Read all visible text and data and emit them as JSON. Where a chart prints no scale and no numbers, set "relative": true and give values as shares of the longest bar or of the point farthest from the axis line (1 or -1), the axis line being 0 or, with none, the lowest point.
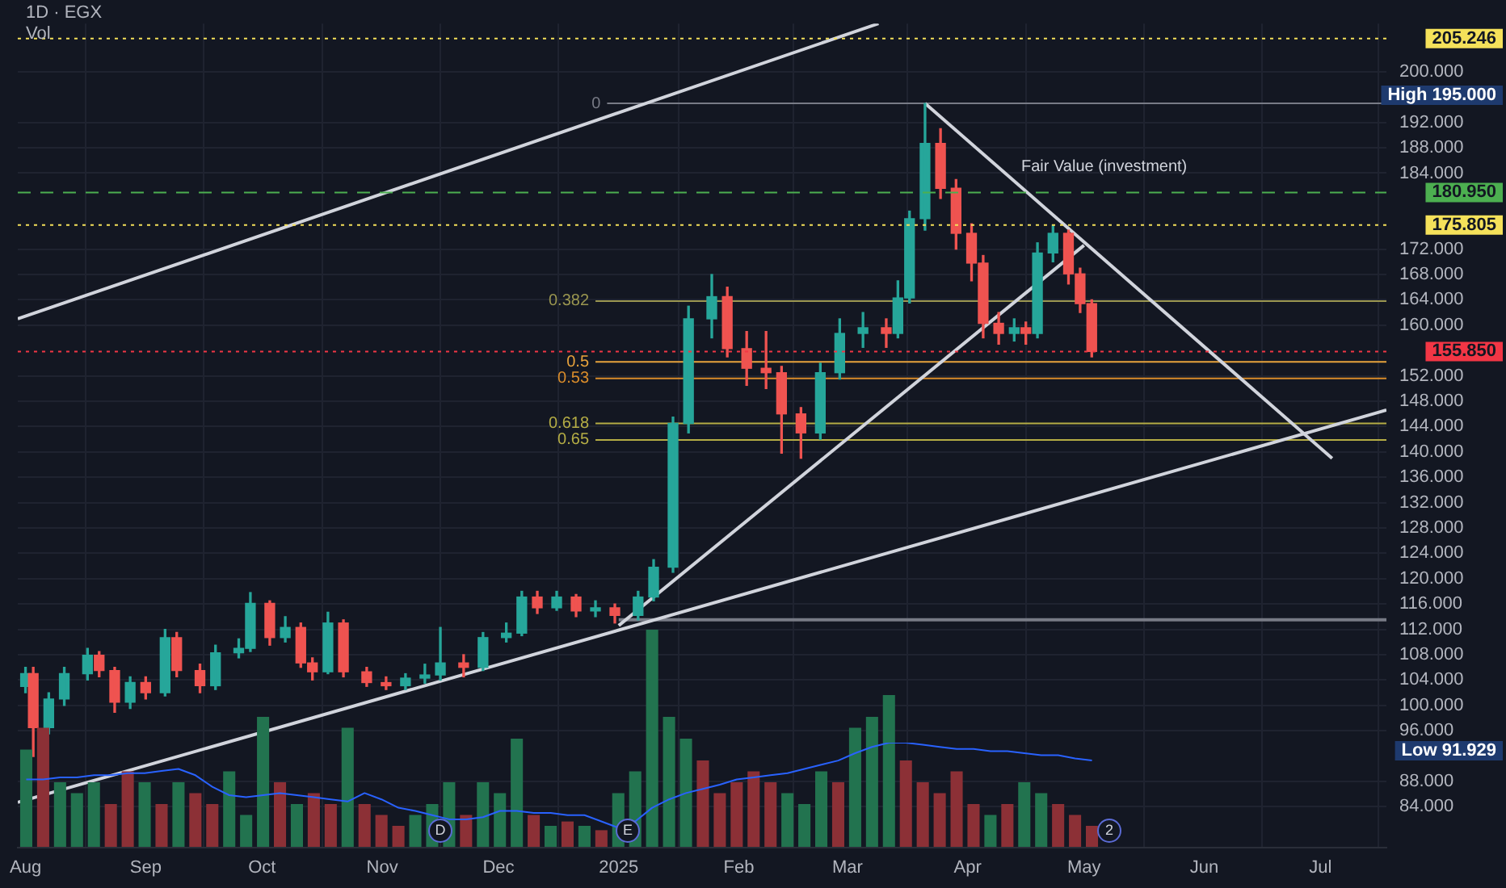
{
  "chart_data": [
    {
      "type": "candlestick",
      "title": "1D · EGX",
      "grid": true,
      "x": [
        "2024-08-01",
        "2024-08-03",
        "2024-08-07",
        "2024-08-11",
        "2024-08-17",
        "2024-08-20",
        "2024-08-24",
        "2024-08-28",
        "2024-09-01",
        "2024-09-06",
        "2024-09-09",
        "2024-09-15",
        "2024-09-19",
        "2024-09-25",
        "2024-09-28",
        "2024-10-03",
        "2024-10-07",
        "2024-10-11",
        "2024-10-14",
        "2024-10-18",
        "2024-10-22",
        "2024-10-28",
        "2024-11-02",
        "2024-11-07",
        "2024-11-12",
        "2024-11-16",
        "2024-11-22",
        "2024-11-27",
        "2024-12-03",
        "2024-12-07",
        "2024-12-11",
        "2024-12-16",
        "2024-12-21",
        "2024-12-26",
        "2024-12-31",
        "2025-01-06",
        "2025-01-10",
        "2025-01-15",
        "2025-01-19",
        "2025-01-25",
        "2025-01-29",
        "2025-02-03",
        "2025-02-08",
        "2025-02-12",
        "2025-02-17",
        "2025-02-22",
        "2025-02-27",
        "2025-03-05",
        "2025-03-11",
        "2025-03-14",
        "2025-03-17",
        "2025-03-21",
        "2025-03-25",
        "2025-03-29",
        "2025-04-02",
        "2025-04-05",
        "2025-04-09",
        "2025-04-13",
        "2025-04-16",
        "2025-04-19",
        "2025-04-23",
        "2025-04-27",
        "2025-04-30",
        "2025-05-03"
      ],
      "ohlc": [
        [
          103,
          106,
          102,
          105
        ],
        [
          105,
          106,
          91.929,
          96.5
        ],
        [
          96.5,
          102,
          95.5,
          101
        ],
        [
          101,
          106,
          100,
          105
        ],
        [
          105,
          109,
          104,
          107.9
        ],
        [
          107.9,
          108.5,
          104.5,
          105.5
        ],
        [
          105.5,
          106,
          98.9,
          100.5
        ],
        [
          100.5,
          104.5,
          99.5,
          103.6
        ],
        [
          103.6,
          104.5,
          101,
          102
        ],
        [
          102,
          112,
          101.5,
          110.7
        ],
        [
          110.7,
          111.5,
          104.5,
          105.5
        ],
        [
          105.5,
          106.5,
          102,
          103.1
        ],
        [
          103.1,
          109.5,
          102.5,
          108.3
        ],
        [
          108.3,
          110.5,
          107.5,
          109
        ],
        [
          109,
          117.8,
          108.5,
          116.1
        ],
        [
          116.1,
          116.5,
          109.5,
          110.7
        ],
        [
          110.7,
          114,
          110,
          112.3
        ],
        [
          112.3,
          113,
          106,
          106.7
        ],
        [
          106.7,
          107.5,
          104,
          105.3
        ],
        [
          105.3,
          114.7,
          105,
          113
        ],
        [
          113,
          113.5,
          104.5,
          105.3
        ],
        [
          105.3,
          106,
          103,
          103.6
        ],
        [
          103.6,
          104.5,
          102.5,
          103.1
        ],
        [
          103.1,
          105,
          102.5,
          104.3
        ],
        [
          104.3,
          106.5,
          103.5,
          104.8
        ],
        [
          104.8,
          112.3,
          104,
          106.7
        ],
        [
          106.7,
          108,
          104.5,
          106
        ],
        [
          106,
          111.5,
          105.5,
          110.7
        ],
        [
          110.7,
          113,
          110,
          111.4
        ],
        [
          111.4,
          118,
          111,
          117.1
        ],
        [
          117.1,
          118,
          114.5,
          115.4
        ],
        [
          115.4,
          118,
          115,
          117.1
        ],
        [
          117.1,
          117.5,
          114,
          114.9
        ],
        [
          114.9,
          116.5,
          114,
          115.4
        ],
        [
          115.4,
          116,
          113,
          114.2
        ],
        [
          114.2,
          118,
          113.5,
          117.1
        ],
        [
          117.1,
          123,
          116.5,
          121.8
        ],
        [
          121.8,
          145.5,
          121,
          144.5
        ],
        [
          144.5,
          163,
          143,
          161
        ],
        [
          161,
          168,
          158,
          164.5
        ],
        [
          164.5,
          166,
          155,
          156.3
        ],
        [
          156.3,
          159,
          150.5,
          153.2
        ],
        [
          153.2,
          159,
          150,
          152.5
        ],
        [
          152.5,
          153.5,
          139.8,
          146
        ],
        [
          146,
          147,
          139,
          143
        ],
        [
          143,
          154,
          142,
          152.5
        ],
        [
          152.5,
          161,
          151.5,
          158.7
        ],
        [
          158.7,
          162,
          156.5,
          159.6
        ],
        [
          159.6,
          161,
          156.5,
          158.7
        ],
        [
          158.7,
          167,
          158,
          164.3
        ],
        [
          164.3,
          178,
          163.5,
          176.8
        ],
        [
          176.8,
          195,
          175,
          188.7
        ],
        [
          188.7,
          191,
          180,
          181.6
        ],
        [
          181.6,
          183,
          172,
          174.5
        ],
        [
          174.5,
          176,
          167,
          169.8
        ],
        [
          169.8,
          171,
          158,
          160.3
        ],
        [
          160.3,
          162,
          157,
          158.7
        ],
        [
          158.7,
          161,
          157.5,
          159.6
        ],
        [
          159.6,
          160.5,
          157,
          158.7
        ],
        [
          158.7,
          173,
          158,
          171.4
        ],
        [
          171.4,
          175.8,
          170,
          174.5
        ],
        [
          174.5,
          175,
          166.5,
          168.1
        ],
        [
          168.1,
          169,
          162,
          163.4
        ],
        [
          163.4,
          164,
          155,
          155.85
        ]
      ],
      "colors": [
        "#26a69a",
        "#ef5350",
        "#26a69a",
        "#26a69a",
        "#26a69a",
        "#ef5350",
        "#ef5350",
        "#26a69a",
        "#ef5350",
        "#26a69a",
        "#ef5350",
        "#ef5350",
        "#26a69a",
        "#26a69a",
        "#26a69a",
        "#ef5350",
        "#26a69a",
        "#ef5350",
        "#ef5350",
        "#26a69a",
        "#ef5350",
        "#ef5350",
        "#ef5350",
        "#26a69a",
        "#26a69a",
        "#26a69a",
        "#ef5350",
        "#26a69a",
        "#26a69a",
        "#26a69a",
        "#ef5350",
        "#26a69a",
        "#ef5350",
        "#26a69a",
        "#ef5350",
        "#26a69a",
        "#26a69a",
        "#26a69a",
        "#26a69a",
        "#26a69a",
        "#ef5350",
        "#ef5350",
        "#ef5350",
        "#ef5350",
        "#ef5350",
        "#26a69a",
        "#26a69a",
        "#26a69a",
        "#ef5350",
        "#26a69a",
        "#26a69a",
        "#26a69a",
        "#ef5350",
        "#ef5350",
        "#ef5350",
        "#ef5350",
        "#ef5350",
        "#26a69a",
        "#ef5350",
        "#26a69a",
        "#26a69a",
        "#ef5350",
        "#ef5350",
        "#ef5350"
      ],
      "series": [
        {
          "type": "line",
          "color": "#d1d4dc",
          "x": [
            "2024-07-30",
            "2025-03-09"
          ],
          "values": [
            161,
            207.6
          ]
        },
        {
          "type": "line",
          "color": "#d1d4dc",
          "x": [
            "2024-07-30",
            "2025-07-18"
          ],
          "values": [
            84.7,
            146.6
          ]
        },
        {
          "type": "line",
          "color": "#d1d4dc",
          "x": [
            "2025-01-01",
            "2025-05-01"
          ],
          "values": [
            112.6,
            172.6
          ]
        },
        {
          "type": "line",
          "color": "#d1d4dc",
          "x": [
            "2025-03-21",
            "2025-07-04"
          ],
          "values": [
            195,
            139
          ]
        },
        {
          "type": "line",
          "color": "#787b86",
          "x": [
            "2025-01-01",
            "2025-07-18"
          ],
          "values": [
            113.5,
            113.5
          ]
        },
        {
          "type": "line",
          "name": "0",
          "color": "#787b86",
          "x": [
            "2024-12-29",
            "2025-07-18"
          ],
          "values": [
            195,
            195
          ]
        },
        {
          "type": "line",
          "name": "0.382",
          "color": "#9a9650",
          "x": [
            "2024-12-26",
            "2025-07-18"
          ],
          "values": [
            163.8,
            163.8
          ]
        },
        {
          "type": "line",
          "name": "0.5",
          "color": "#e8a33c",
          "x": [
            "2024-12-26",
            "2025-07-18"
          ],
          "values": [
            154.2,
            154.2
          ]
        },
        {
          "type": "line",
          "name": "0.53",
          "color": "#d98c2b",
          "x": [
            "2024-12-26",
            "2025-07-18"
          ],
          "values": [
            151.6,
            151.6
          ]
        },
        {
          "type": "line",
          "name": "0.618",
          "color": "#b5ad45",
          "x": [
            "2024-12-26",
            "2025-07-18"
          ],
          "values": [
            144.5,
            144.5
          ]
        },
        {
          "type": "line",
          "name": "0.65",
          "color": "#b5ad45",
          "x": [
            "2024-12-26",
            "2025-07-18"
          ],
          "values": [
            141.9,
            141.9
          ]
        }
      ],
      "ref_lines": [
        {
          "axis": "y",
          "value": 205.246,
          "label": "205.246",
          "color": "#f5e15a",
          "line_style": "dotted"
        },
        {
          "axis": "y",
          "value": 180.95,
          "label": "180.950",
          "color": "#4caf50",
          "line_style": "dashed"
        },
        {
          "axis": "y",
          "value": 175.805,
          "label": "175.805",
          "color": "#f5e15a",
          "line_style": "dotted"
        },
        {
          "axis": "y",
          "value": 155.85,
          "label": "155.850",
          "color": "#f23645",
          "line_style": "dotted"
        }
      ],
      "annotations": [
        "Fair Value (investment)",
        "High 195.000",
        "Low 91.929"
      ],
      "xlim": [
        "2024-07-30",
        "2025-07-18"
      ],
      "xticks": [
        {
          "value": "2024-08-01",
          "label": "Aug"
        },
        {
          "value": "2024-09-01",
          "label": "Sep"
        },
        {
          "value": "2024-10-01",
          "label": "Oct"
        },
        {
          "value": "2024-11-01",
          "label": "Nov"
        },
        {
          "value": "2024-12-01",
          "label": "Dec"
        },
        {
          "value": "2025-01-01",
          "label": "2025"
        },
        {
          "value": "2025-02-01",
          "label": "Feb"
        },
        {
          "value": "2025-03-01",
          "label": "Mar"
        },
        {
          "value": "2025-04-01",
          "label": "Apr"
        },
        {
          "value": "2025-05-01",
          "label": "May"
        },
        {
          "value": "2025-06-01",
          "label": "Jun"
        },
        {
          "value": "2025-07-01",
          "label": "Jul"
        }
      ],
      "ylim": [
        77.6,
        207.6
      ],
      "yticks": [
        {
          "value": 84,
          "label": "84.000"
        },
        {
          "value": 88,
          "label": "88.000"
        },
        {
          "value": 96,
          "label": "96.000"
        },
        {
          "value": 100,
          "label": "100.000"
        },
        {
          "value": 104,
          "label": "104.000"
        },
        {
          "value": 108,
          "label": "108.000"
        },
        {
          "value": 112,
          "label": "112.000"
        },
        {
          "value": 116,
          "label": "116.000"
        },
        {
          "value": 120,
          "label": "120.000"
        },
        {
          "value": 124,
          "label": "124.000"
        },
        {
          "value": 128,
          "label": "128.000"
        },
        {
          "value": 132,
          "label": "132.000"
        },
        {
          "value": 136,
          "label": "136.000"
        },
        {
          "value": 140,
          "label": "140.000"
        },
        {
          "value": 144,
          "label": "144.000"
        },
        {
          "value": 148,
          "label": "148.000"
        },
        {
          "value": 152,
          "label": "152.000"
        },
        {
          "value": 160,
          "label": "160.000"
        },
        {
          "value": 164,
          "label": "164.000"
        },
        {
          "value": 168,
          "label": "168.000"
        },
        {
          "value": 172,
          "label": "172.000"
        },
        {
          "value": 184,
          "label": "184.000"
        },
        {
          "value": 188,
          "label": "188.000"
        },
        {
          "value": 192,
          "label": "192.000"
        },
        {
          "value": 200,
          "label": "200.000"
        }
      ]
    },
    {
      "type": "bar",
      "title": "Vol",
      "relative": true,
      "tick_labels": false,
      "categories": [
        null,
        null,
        null,
        null,
        null,
        null,
        null,
        null,
        null,
        null,
        null,
        null,
        null,
        null,
        null,
        null,
        null,
        null,
        null,
        null,
        null,
        null,
        null,
        null,
        null,
        null,
        null,
        null,
        null,
        null,
        null,
        null,
        null,
        null,
        null,
        null,
        null,
        null,
        null,
        null,
        null,
        null,
        null,
        null,
        null,
        null,
        null,
        null,
        null,
        null,
        null,
        null,
        null,
        null,
        null,
        null,
        null,
        null,
        null,
        null,
        null,
        null,
        null,
        null
      ],
      "values": [
        0.45,
        0.55,
        0.3,
        0.25,
        0.3,
        0.2,
        0.35,
        0.3,
        0.2,
        0.3,
        0.25,
        0.2,
        0.35,
        0.15,
        0.6,
        0.3,
        0.2,
        0.25,
        0.2,
        0.55,
        0.2,
        0.15,
        0.1,
        0.15,
        0.2,
        0.3,
        0.15,
        0.3,
        0.25,
        0.5,
        0.15,
        0.1,
        0.12,
        0.1,
        0.08,
        0.25,
        0.35,
        1,
        0.6,
        0.5,
        0.4,
        0.25,
        0.3,
        0.35,
        0.3,
        0.25,
        0.2,
        0.35,
        0.3,
        0.55,
        0.6,
        0.7,
        0.4,
        0.3,
        0.25,
        0.35,
        0.2,
        0.15,
        0.2,
        0.3,
        0.25,
        0.2,
        0.15,
        0.1
      ],
      "colors": [
        "#22734f",
        "#8c3036",
        "#22734f",
        "#22734f",
        "#22734f",
        "#8c3036",
        "#8c3036",
        "#22734f",
        "#8c3036",
        "#22734f",
        "#8c3036",
        "#8c3036",
        "#22734f",
        "#22734f",
        "#22734f",
        "#8c3036",
        "#22734f",
        "#8c3036",
        "#8c3036",
        "#22734f",
        "#8c3036",
        "#8c3036",
        "#8c3036",
        "#22734f",
        "#22734f",
        "#22734f",
        "#8c3036",
        "#22734f",
        "#22734f",
        "#22734f",
        "#8c3036",
        "#22734f",
        "#8c3036",
        "#22734f",
        "#8c3036",
        "#22734f",
        "#22734f",
        "#22734f",
        "#22734f",
        "#22734f",
        "#8c3036",
        "#8c3036",
        "#8c3036",
        "#8c3036",
        "#8c3036",
        "#22734f",
        "#22734f",
        "#22734f",
        "#8c3036",
        "#22734f",
        "#22734f",
        "#22734f",
        "#8c3036",
        "#8c3036",
        "#8c3036",
        "#8c3036",
        "#8c3036",
        "#22734f",
        "#8c3036",
        "#22734f",
        "#22734f",
        "#8c3036",
        "#8c3036",
        "#8c3036"
      ],
      "annotations": [
        "D",
        "E",
        "2"
      ]
    },
    {
      "type": "line",
      "relative": true,
      "tick_labels": false,
      "categories": [
        null,
        null,
        null,
        null,
        null,
        null,
        null,
        null,
        null,
        null,
        null,
        null,
        null,
        null,
        null,
        null,
        null,
        null,
        null,
        null,
        null,
        null,
        null,
        null,
        null,
        null,
        null,
        null,
        null,
        null,
        null,
        null,
        null,
        null,
        null,
        null,
        null,
        null,
        null,
        null,
        null,
        null,
        null,
        null,
        null,
        null,
        null,
        null,
        null,
        null,
        null,
        null,
        null,
        null,
        null,
        null,
        null,
        null,
        null,
        null,
        null,
        null,
        null,
        null
      ],
      "series": [
        {
          "color": "#2962ff",
          "values": [
            0.65,
            0.65,
            0.67,
            0.67,
            0.69,
            0.69,
            0.71,
            0.71,
            0.73,
            0.75,
            0.69,
            0.58,
            0.5,
            0.48,
            0.5,
            0.52,
            0.5,
            0.48,
            0.46,
            0.44,
            0.52,
            0.46,
            0.38,
            0.35,
            0.31,
            0.27,
            0.27,
            0.29,
            0.35,
            0.35,
            0.33,
            0.33,
            0.31,
            0.31,
            0.25,
            0.19,
            0.25,
            0.38,
            0.46,
            0.52,
            0.56,
            0.6,
            0.65,
            0.67,
            0.69,
            0.71,
            0.75,
            0.79,
            0.83,
            0.9,
            0.96,
            1,
            1,
            0.98,
            0.96,
            0.94,
            0.94,
            0.92,
            0.92,
            0.9,
            0.88,
            0.88,
            0.85,
            0.83
          ]
        }
      ]
    }
  ]
}
